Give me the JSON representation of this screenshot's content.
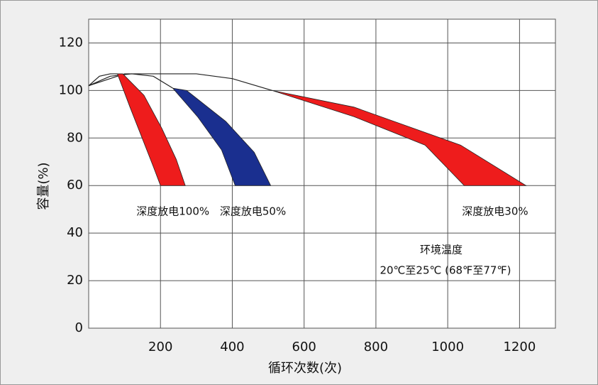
{
  "chart_data": {
    "type": "band",
    "xlabel": "循环次数(次)",
    "ylabel": "容量(%)",
    "xlim": [
      0,
      1300
    ],
    "ylim": [
      0,
      130
    ],
    "xticks": [
      200,
      400,
      600,
      800,
      1000,
      1200
    ],
    "yticks": [
      0,
      20,
      40,
      60,
      80,
      100,
      120
    ],
    "grid": true,
    "series": [
      {
        "name": "深度放电100%",
        "color": "#ee1c1c",
        "x": [
          80,
          115,
          154,
          180,
          200
        ],
        "values": [
          107,
          93,
          78,
          68,
          60
        ],
        "x2": [
          95,
          154,
          204,
          244,
          269
        ],
        "values2": [
          107,
          98,
          84,
          71,
          60
        ]
      },
      {
        "name": "深度放电50%",
        "color": "#1a2f8f",
        "x": [
          234,
          303,
          370,
          408
        ],
        "values": [
          101,
          89,
          75,
          60
        ],
        "x2": [
          273,
          382,
          461,
          507
        ],
        "values2": [
          100,
          87,
          74,
          60
        ]
      },
      {
        "name": "深度放电30%",
        "color": "#ee1c1c",
        "x": [
          511,
          739,
          937,
          1046
        ],
        "values": [
          100,
          89,
          77,
          60
        ],
        "x2": [
          511,
          739,
          1036,
          1218
        ],
        "values2": [
          100,
          93,
          77,
          60
        ]
      }
    ],
    "curves": [
      {
        "x": [
          0,
          30,
          60,
          80
        ],
        "values": [
          102,
          106,
          107,
          107
        ]
      },
      {
        "x": [
          0,
          60,
          120,
          180,
          234
        ],
        "values": [
          102,
          106,
          107,
          106,
          101
        ]
      },
      {
        "x": [
          0,
          100,
          200,
          300,
          400,
          511
        ],
        "values": [
          102,
          107,
          107,
          107,
          105,
          100
        ]
      }
    ],
    "annotations": [
      "环境温度",
      "20℃至25℃ (68℉至77℉)"
    ]
  }
}
